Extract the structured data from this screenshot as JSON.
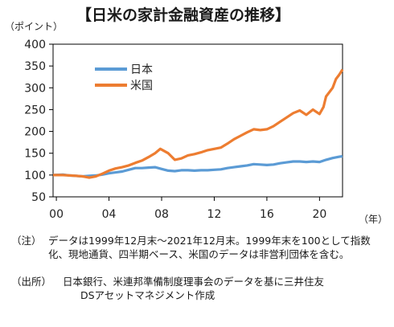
{
  "title": "【日米の家計金融資産の推移】",
  "y_unit": "（ポイント）",
  "x_unit": "（年）",
  "notes": {
    "note_label": "（注）",
    "note_text": "データは1999年12月末～2021年12月末。1999年末を100として指数化、現地通貨、四半期ベース、米国のデータは非営利団体を含む。",
    "source_label": "（出所）",
    "source_text_1": "日本銀行、米連邦準備制度理事会のデータを基に三井住友",
    "source_text_2": "DSアセットマネジメント作成"
  },
  "chart_data": {
    "type": "line",
    "title": "【日米の家計金融資産の推移】",
    "xlabel": "（年）",
    "ylabel": "（ポイント）",
    "ylim": [
      50,
      400
    ],
    "xlim": [
      1999.75,
      2021.75
    ],
    "yticks": [
      50,
      100,
      150,
      200,
      250,
      300,
      350,
      400
    ],
    "xticks": [
      {
        "value": 2000,
        "label": "00"
      },
      {
        "value": 2004,
        "label": "04"
      },
      {
        "value": 2008,
        "label": "08"
      },
      {
        "value": 2012,
        "label": "12"
      },
      {
        "value": 2016,
        "label": "16"
      },
      {
        "value": 2020,
        "label": "20"
      }
    ],
    "grid": false,
    "legend": "top-left",
    "series": [
      {
        "name": "日本",
        "color": "#5b9bd5",
        "points": [
          [
            1999.75,
            100
          ],
          [
            2000.5,
            101
          ],
          [
            2001.0,
            99
          ],
          [
            2001.5,
            98
          ],
          [
            2002.0,
            97
          ],
          [
            2002.5,
            98
          ],
          [
            2003.0,
            99
          ],
          [
            2003.5,
            101
          ],
          [
            2004.0,
            104
          ],
          [
            2004.5,
            106
          ],
          [
            2005.0,
            108
          ],
          [
            2005.5,
            112
          ],
          [
            2006.0,
            116
          ],
          [
            2006.5,
            116
          ],
          [
            2007.0,
            117
          ],
          [
            2007.5,
            118
          ],
          [
            2008.0,
            114
          ],
          [
            2008.5,
            110
          ],
          [
            2009.0,
            109
          ],
          [
            2009.5,
            111
          ],
          [
            2010.0,
            111
          ],
          [
            2010.5,
            110
          ],
          [
            2011.0,
            111
          ],
          [
            2011.5,
            111
          ],
          [
            2012.0,
            112
          ],
          [
            2012.5,
            113
          ],
          [
            2013.0,
            116
          ],
          [
            2013.5,
            118
          ],
          [
            2014.0,
            120
          ],
          [
            2014.5,
            122
          ],
          [
            2015.0,
            125
          ],
          [
            2015.5,
            124
          ],
          [
            2016.0,
            123
          ],
          [
            2016.5,
            124
          ],
          [
            2017.0,
            127
          ],
          [
            2017.5,
            129
          ],
          [
            2018.0,
            131
          ],
          [
            2018.5,
            131
          ],
          [
            2019.0,
            130
          ],
          [
            2019.5,
            131
          ],
          [
            2020.0,
            130
          ],
          [
            2020.5,
            135
          ],
          [
            2021.0,
            139
          ],
          [
            2021.5,
            142
          ],
          [
            2021.75,
            143
          ]
        ]
      },
      {
        "name": "米国",
        "color": "#ed7d31",
        "points": [
          [
            1999.75,
            100
          ],
          [
            2000.5,
            100
          ],
          [
            2001.0,
            99
          ],
          [
            2001.5,
            98
          ],
          [
            2002.0,
            97
          ],
          [
            2002.5,
            94
          ],
          [
            2003.0,
            97
          ],
          [
            2003.5,
            103
          ],
          [
            2004.0,
            110
          ],
          [
            2004.5,
            115
          ],
          [
            2005.0,
            118
          ],
          [
            2005.5,
            122
          ],
          [
            2006.0,
            128
          ],
          [
            2006.5,
            133
          ],
          [
            2007.0,
            141
          ],
          [
            2007.5,
            150
          ],
          [
            2007.9,
            160
          ],
          [
            2008.5,
            150
          ],
          [
            2009.0,
            135
          ],
          [
            2009.5,
            138
          ],
          [
            2010.0,
            145
          ],
          [
            2010.5,
            148
          ],
          [
            2011.0,
            152
          ],
          [
            2011.5,
            157
          ],
          [
            2012.0,
            160
          ],
          [
            2012.5,
            163
          ],
          [
            2013.0,
            172
          ],
          [
            2013.5,
            182
          ],
          [
            2014.0,
            190
          ],
          [
            2014.5,
            198
          ],
          [
            2015.0,
            205
          ],
          [
            2015.5,
            203
          ],
          [
            2016.0,
            205
          ],
          [
            2016.5,
            212
          ],
          [
            2017.0,
            222
          ],
          [
            2017.5,
            232
          ],
          [
            2018.0,
            242
          ],
          [
            2018.5,
            248
          ],
          [
            2019.0,
            238
          ],
          [
            2019.5,
            250
          ],
          [
            2020.0,
            240
          ],
          [
            2020.3,
            256
          ],
          [
            2020.5,
            280
          ],
          [
            2021.0,
            300
          ],
          [
            2021.25,
            320
          ],
          [
            2021.5,
            330
          ],
          [
            2021.75,
            342
          ]
        ]
      }
    ]
  }
}
